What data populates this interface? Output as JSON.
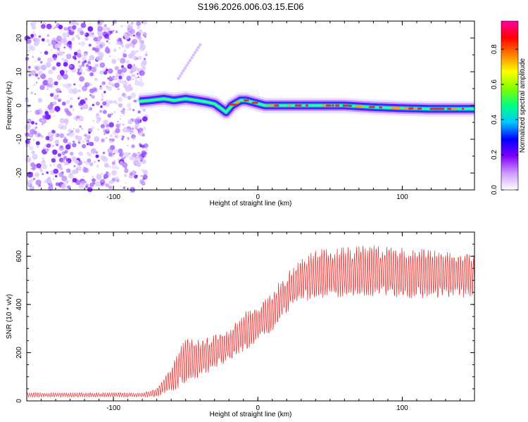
{
  "title": "S196.2026.006.03.15.E06",
  "chart_data": [
    {
      "type": "heatmap",
      "xlabel": "Height of straight line (km)",
      "ylabel": "Frequency (Hz)",
      "xlim": [
        -160,
        150
      ],
      "ylim": [
        -25,
        25
      ],
      "x_ticks": [
        -100,
        0,
        100
      ],
      "y_ticks": [
        -20,
        -10,
        0,
        10,
        20
      ],
      "x_tick_labels": [
        "-100",
        "0",
        "100"
      ],
      "y_tick_labels": [
        "-20",
        "-10",
        "0",
        "10",
        "20"
      ],
      "colorbar": {
        "label": "Normalized spectral amplitude",
        "range": [
          0,
          0.96
        ],
        "ticks": [
          0.0,
          0.2,
          0.4,
          0.6,
          0.8
        ],
        "tick_labels": [
          "0.0",
          "0.2",
          "0.4",
          "0.6",
          "0.8"
        ],
        "colors": [
          "#ffffff",
          "#cc99ff",
          "#8000ff",
          "#0000ff",
          "#00c8ff",
          "#00ff80",
          "#80ff00",
          "#ffff00",
          "#ff8000",
          "#ff0000",
          "#ff00a0"
        ]
      },
      "ridge": {
        "x": [
          -82,
          -75,
          -65,
          -58,
          -50,
          -42,
          -35,
          -30,
          -25,
          -22,
          -18,
          -12,
          -8,
          -2,
          5,
          20,
          40,
          60,
          80,
          100,
          120,
          150
        ],
        "y": [
          1.2,
          1.5,
          2.0,
          1.5,
          2.0,
          1.5,
          1.0,
          0.5,
          -1.0,
          -2.0,
          0.0,
          1.5,
          1.5,
          0.8,
          0.0,
          0.0,
          0.0,
          0.0,
          -0.5,
          -0.8,
          -1.0,
          -1.0
        ]
      },
      "noise_region_x": [
        -160,
        -77
      ],
      "faint_streak": {
        "x": [
          -55,
          -40
        ],
        "y": [
          8,
          18
        ]
      }
    },
    {
      "type": "line",
      "xlabel": "Height of straight line (km)",
      "ylabel": "SNR (10 * v/v)",
      "xlim": [
        -160,
        150
      ],
      "ylim": [
        0,
        700
      ],
      "x_ticks": [
        -100,
        0,
        100
      ],
      "y_ticks": [
        0,
        200,
        400,
        600
      ],
      "x_tick_labels": [
        "-100",
        "0",
        "100"
      ],
      "y_tick_labels": [
        "0",
        "200",
        "400",
        "600"
      ],
      "color": "#e8312f",
      "envelope": {
        "x": [
          -160,
          -80,
          -70,
          -60,
          -50,
          -40,
          -30,
          -20,
          -10,
          0,
          10,
          20,
          30,
          40,
          60,
          80,
          100,
          120,
          150
        ],
        "low": [
          15,
          15,
          15,
          30,
          60,
          90,
          120,
          160,
          190,
          240,
          280,
          350,
          400,
          410,
          420,
          420,
          410,
          410,
          420
        ],
        "high": [
          35,
          35,
          55,
          150,
          280,
          260,
          290,
          300,
          380,
          390,
          470,
          540,
          600,
          640,
          650,
          660,
          650,
          640,
          620
        ]
      }
    }
  ]
}
